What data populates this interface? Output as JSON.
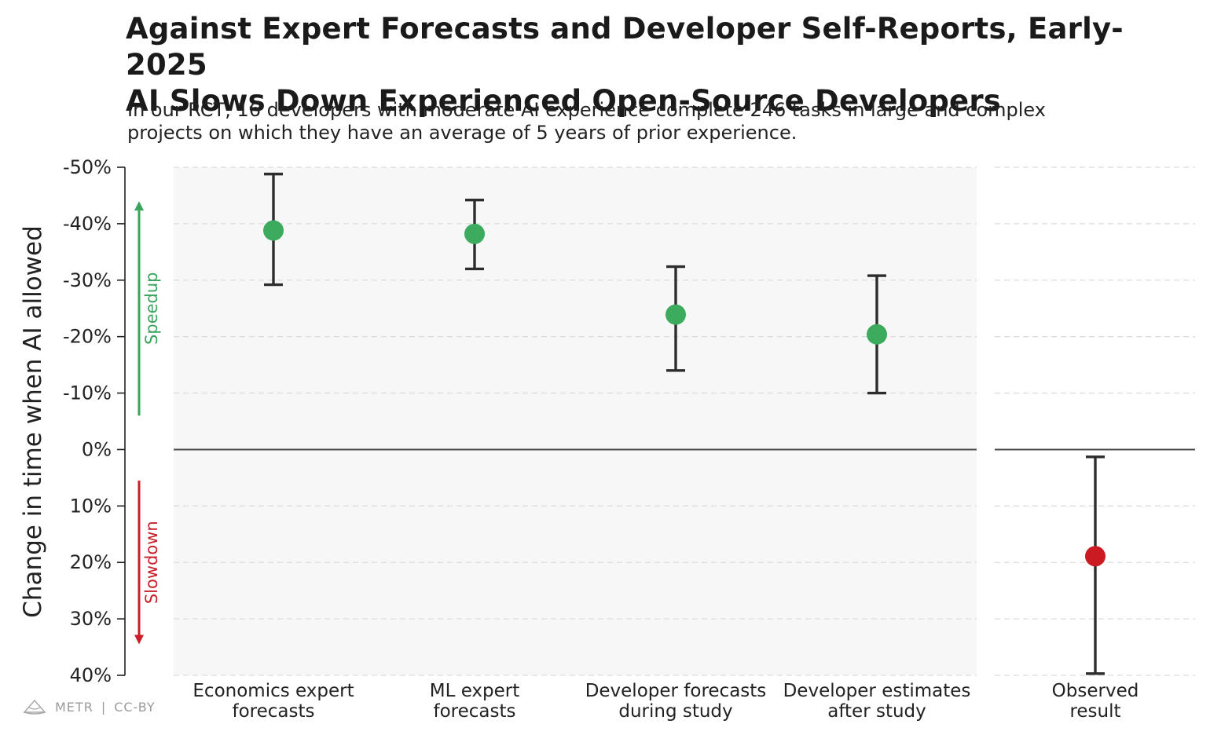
{
  "title_line1": "Against Expert Forecasts and Developer Self-Reports, Early-2025",
  "title_line2": "AI Slows Down Experienced Open-Source Developers",
  "subtitle_line1": "In our RCT, 16 developers with moderate AI experience complete 246 tasks in large and complex",
  "subtitle_line2": "projects on which they have an average of 5 years of prior experience.",
  "footer": {
    "brand": "METR",
    "separator": "|",
    "license": "CC-BY",
    "logo_icon": "metr-logo-icon"
  },
  "chart_data": {
    "type": "scatter",
    "ylabel": "Change in time when AI allowed",
    "ylim": [
      -50,
      40
    ],
    "y_ticks": [
      -50,
      -40,
      -30,
      -20,
      -10,
      0,
      10,
      20,
      30,
      40
    ],
    "y_tick_labels": [
      "-50%",
      "-40%",
      "-30%",
      "-20%",
      "-10%",
      "0%",
      "10%",
      "20%",
      "30%",
      "40%"
    ],
    "grid": true,
    "annotations": [
      {
        "text": "Speedup",
        "color": "#3aa35c",
        "from": -6,
        "to": -44
      },
      {
        "text": "Slowdown",
        "color": "#c8202a",
        "from": 5.5,
        "to": 34.5
      }
    ],
    "colors": {
      "forecast": "#3dab5e",
      "observed": "#cc1a22",
      "errorbar": "#2d2d2d",
      "panel_bg": "#f7f7f7"
    },
    "panels": [
      {
        "categories": [
          {
            "label_line1": "Economics expert",
            "label_line2": "forecasts",
            "value": -38.8,
            "low": -48.8,
            "high": -29.2
          },
          {
            "label_line1": "ML expert",
            "label_line2": "forecasts",
            "value": -38.2,
            "low": -44.2,
            "high": -32.0
          },
          {
            "label_line1": "Developer forecasts",
            "label_line2": "during study",
            "value": -23.9,
            "low": -32.4,
            "high": -14.0
          },
          {
            "label_line1": "Developer estimates",
            "label_line2": "after study",
            "value": -20.4,
            "low": -30.8,
            "high": -10.0
          }
        ]
      },
      {
        "categories": [
          {
            "label_line1": "Observed",
            "label_line2": "result",
            "value": 18.9,
            "low": 1.3,
            "high": 39.7
          }
        ]
      }
    ]
  }
}
